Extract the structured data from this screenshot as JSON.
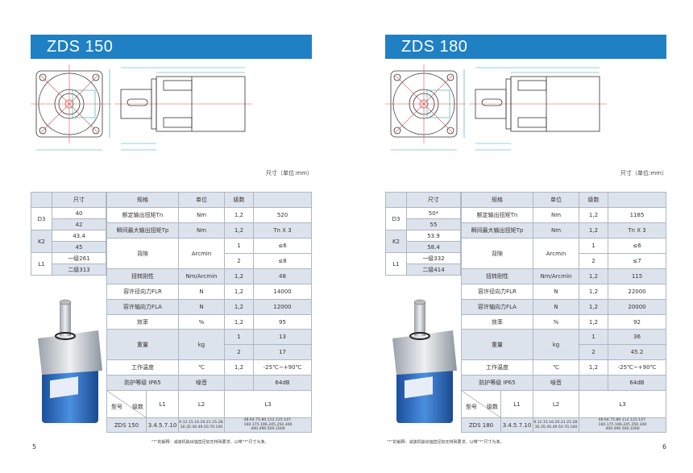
{
  "pages": [
    {
      "title": "ZDS 150",
      "unit_note": "尺寸（单位:mm）",
      "headers": {
        "size": "尺寸",
        "spec": "规格",
        "unit": "单位",
        "stage": "级数"
      },
      "sizes": [
        {
          "label": "D3",
          "values": [
            "40",
            "42"
          ]
        },
        {
          "label": "K2",
          "values": [
            "43.4",
            "45"
          ]
        },
        {
          "label": "L1",
          "values": [
            "一级261",
            "二级313"
          ]
        }
      ],
      "specs": {
        "rated_torque": {
          "name": "额定输出扭矩Tn",
          "unit": "Nm",
          "stage": "1,2",
          "value": "520"
        },
        "max_torque": {
          "name": "瞬间最大输出扭矩Tp",
          "unit": "Nm",
          "stage": "1,2",
          "value": "Tn X 3"
        },
        "backlash": {
          "name": "背隙",
          "unit": "Arcmin",
          "stages": [
            "1",
            "2"
          ],
          "values": [
            "≤6",
            "≤8"
          ]
        },
        "torsional": {
          "name": "扭转刚性",
          "unit": "Nm/Arcmin",
          "stage": "1,2",
          "value": "48"
        },
        "radial": {
          "name": "容许径向力FLR",
          "unit": "N",
          "stage": "1,2",
          "value": "14000"
        },
        "axial": {
          "name": "容许轴向力FLA",
          "unit": "N",
          "stage": "1,2",
          "value": "12000"
        },
        "efficiency": {
          "name": "效率",
          "unit": "%",
          "stage": "1,2",
          "value": "95"
        },
        "weight": {
          "name": "重量",
          "unit": "kg",
          "stages": [
            "1",
            "2"
          ],
          "values": [
            "13",
            "17"
          ]
        },
        "temperature": {
          "name": "工作温度",
          "unit": "℃",
          "stage": "1,2",
          "value": "-25℃~+90℃"
        },
        "protection": {
          "name": "防护等级  IP65",
          "noise_label": "噪音",
          "value": "64dB"
        }
      },
      "model_table": {
        "model_label": "型号",
        "stage_label": "级数",
        "l1": "L1",
        "l2": "L2",
        "l3": "L3",
        "model": "ZDS 150",
        "l1_value": "3.4.5.7.10",
        "l2_lines": [
          "9.12.15.16.20.21.25.28.",
          "30.35.40.49.50.70.100"
        ],
        "l3_lines": [
          "48.64.75.80.112.125.147.",
          "160.175.196.245.250.300",
          "400.490.500.1000"
        ]
      },
      "footnote": "“*”的解释：减速机输出轴直径如无特殊要求，以带“*”尺寸为准。",
      "page_number": "5"
    },
    {
      "title": "ZDS  180",
      "unit_note": "尺寸（单位:mm）",
      "headers": {
        "size": "尺寸",
        "spec": "规格",
        "unit": "单位",
        "stage": "级数"
      },
      "sizes": [
        {
          "label": "D3",
          "values": [
            "50*",
            "55"
          ]
        },
        {
          "label": "K2",
          "values": [
            "53.9",
            "58.4"
          ]
        },
        {
          "label": "L1",
          "values": [
            "一级332",
            "二级414"
          ]
        }
      ],
      "specs": {
        "rated_torque": {
          "name": "额定输出扭矩Tn",
          "unit": "Nm",
          "stage": "1,2",
          "value": "1185"
        },
        "max_torque": {
          "name": "瞬间最大输出扭矩Tp",
          "unit": "Nm",
          "stage": "1,2",
          "value": "Tn X 3"
        },
        "backlash": {
          "name": "背隙",
          "unit": "Arcmin",
          "stages": [
            "1",
            "2"
          ],
          "values": [
            "≤6",
            "≤7"
          ]
        },
        "torsional": {
          "name": "扭转刚性",
          "unit": "Nm/Arcmin",
          "stage": "1,2",
          "value": "115"
        },
        "radial": {
          "name": "容许径向力FLR",
          "unit": "N",
          "stage": "1,2",
          "value": "22000"
        },
        "axial": {
          "name": "容许轴向力FLA",
          "unit": "N",
          "stage": "1,2",
          "value": "20000"
        },
        "efficiency": {
          "name": "效率",
          "unit": "%",
          "stage": "1,2",
          "value": "92"
        },
        "weight": {
          "name": "重量",
          "unit": "kg",
          "stages": [
            "1",
            "2"
          ],
          "values": [
            "36",
            "45.2"
          ]
        },
        "temperature": {
          "name": "工作温度",
          "unit": "℃",
          "stage": "1,2",
          "value": "-25℃~+90℃"
        },
        "protection": {
          "name": "防护等级  IP65",
          "noise_label": "噪音",
          "value": "64dB"
        }
      },
      "model_table": {
        "model_label": "型号",
        "stage_label": "级数",
        "l1": "L1",
        "l2": "L2",
        "l3": "L3",
        "model": "ZDS 180",
        "l1_value": "3.4.5.7.10",
        "l2_lines": [
          "9.12.15.16.20.21.25.28.",
          "30.35.40.49.50.70.100"
        ],
        "l3_lines": [
          "48.64.75.80.112.125.147.",
          "160.175.196.245.250.300",
          "400.490.500.1000"
        ]
      },
      "footnote": "“*”的解释：减速机输出轴直径如无特殊要求，以带“*”尺寸为准。",
      "page_number": "6"
    }
  ],
  "colors": {
    "header_bar": "#1f80c4",
    "shaded_cell": "#dde3ec",
    "drawing_line": "#333333",
    "center_line": "#d9534f",
    "dimension_line": "#2aa6b5"
  }
}
